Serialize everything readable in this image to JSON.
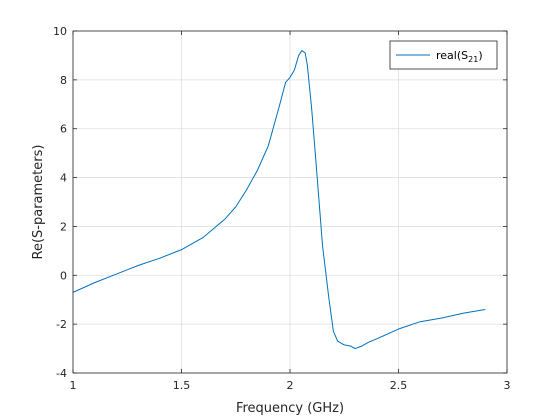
{
  "chart_data": {
    "type": "line",
    "title": "",
    "xlabel": "Frequency (GHz)",
    "ylabel": "Re(S-parameters)",
    "xlim": [
      1,
      3
    ],
    "ylim": [
      -4,
      10
    ],
    "x_ticks": [
      1,
      1.5,
      2,
      2.5,
      3
    ],
    "x_tick_labels": [
      "1",
      "1.5",
      "2",
      "2.5",
      "3"
    ],
    "y_ticks": [
      -4,
      -2,
      0,
      2,
      4,
      6,
      8,
      10
    ],
    "y_tick_labels": [
      "-4",
      "-2",
      "0",
      "2",
      "4",
      "6",
      "8",
      "10"
    ],
    "grid": true,
    "legend_placement": "top-right",
    "series": [
      {
        "name": "real(S21)",
        "legend_main": "real(S",
        "legend_sub": "21",
        "legend_close": ")",
        "color": "#0072BD",
        "x": [
          1.0,
          1.1,
          1.2,
          1.3,
          1.4,
          1.5,
          1.6,
          1.7,
          1.75,
          1.8,
          1.85,
          1.9,
          1.95,
          1.98,
          2.0,
          2.02,
          2.04,
          2.055,
          2.07,
          2.08,
          2.1,
          2.12,
          2.15,
          2.18,
          2.2,
          2.22,
          2.25,
          2.28,
          2.3,
          2.33,
          2.36,
          2.4,
          2.5,
          2.6,
          2.7,
          2.8,
          2.9
        ],
        "y": [
          -0.7,
          -0.3,
          0.05,
          0.4,
          0.7,
          1.05,
          1.55,
          2.3,
          2.8,
          3.5,
          4.3,
          5.3,
          6.9,
          7.9,
          8.1,
          8.4,
          9.0,
          9.2,
          9.1,
          8.6,
          6.8,
          4.6,
          1.2,
          -1.0,
          -2.3,
          -2.7,
          -2.85,
          -2.9,
          -3.0,
          -2.9,
          -2.75,
          -2.6,
          -2.2,
          -1.9,
          -1.75,
          -1.55,
          -1.4
        ]
      }
    ]
  }
}
